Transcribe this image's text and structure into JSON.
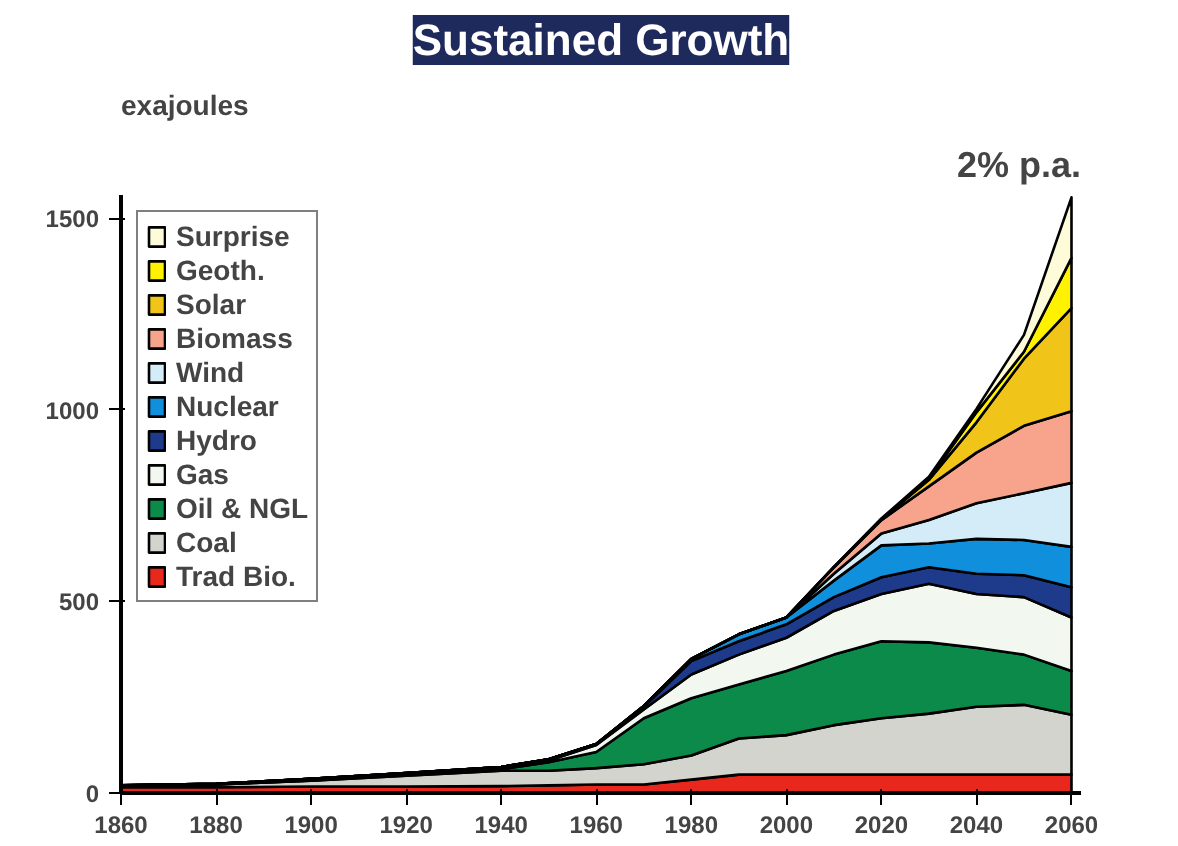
{
  "chart_data": {
    "type": "area",
    "stacked": true,
    "title": "Sustained Growth",
    "ylabel": "exajoules",
    "annotations": [
      "2% p.a."
    ],
    "x": [
      1860,
      1880,
      1900,
      1920,
      1940,
      1950,
      1960,
      1970,
      1980,
      1990,
      2000,
      2010,
      2020,
      2030,
      2040,
      2050,
      2060
    ],
    "xlim": [
      1860,
      2062
    ],
    "xticks": [
      1860,
      1880,
      1900,
      1920,
      1940,
      1960,
      1980,
      2000,
      2020,
      2040,
      2060
    ],
    "ylim": [
      0,
      1560
    ],
    "yticks": [
      0,
      500,
      1000,
      1500
    ],
    "grid": false,
    "legend": "top left",
    "series": [
      {
        "name": "Trad Bio.",
        "color": "#e8281c",
        "values": [
          15,
          15,
          17,
          17,
          18,
          20,
          22,
          22,
          35,
          48,
          48,
          48,
          48,
          48,
          48,
          48,
          48
        ]
      },
      {
        "name": "Coal",
        "color": "#d4d4cf",
        "values": [
          3,
          7,
          15,
          28,
          40,
          38,
          43,
          53,
          63,
          94,
          103,
          129,
          147,
          159,
          177,
          182,
          156
        ]
      },
      {
        "name": "Oil & NGL",
        "color": "#0b8a4a",
        "values": [
          0,
          0,
          1,
          3,
          4,
          22,
          42,
          120,
          149,
          141,
          167,
          184,
          201,
          186,
          154,
          131,
          114
        ]
      },
      {
        "name": "Gas",
        "color": "#f2f7ef",
        "values": [
          1,
          1,
          2,
          2,
          3,
          5,
          18,
          23,
          62,
          78,
          87,
          114,
          123,
          153,
          140,
          150,
          140
        ]
      },
      {
        "name": "Hydro",
        "color": "#1e3a8a",
        "values": [
          1,
          1,
          2,
          2,
          3,
          3,
          3,
          7,
          35,
          35,
          35,
          36,
          44,
          43,
          53,
          57,
          79
        ]
      },
      {
        "name": "Nuclear",
        "color": "#0f8fdc",
        "values": [
          0,
          0,
          0,
          0,
          0,
          0,
          0,
          2,
          6,
          18,
          18,
          43,
          83,
          62,
          91,
          92,
          105
        ]
      },
      {
        "name": "Wind",
        "color": "#d4ecf8",
        "values": [
          0,
          0,
          0,
          0,
          0,
          0,
          0,
          0,
          0,
          0,
          0,
          18,
          31,
          61,
          93,
          122,
          167
        ]
      },
      {
        "name": "Biomass",
        "color": "#f8a48c",
        "values": [
          0,
          0,
          0,
          0,
          0,
          0,
          0,
          0,
          0,
          0,
          0,
          17,
          35,
          88,
          132,
          176,
          187
        ]
      },
      {
        "name": "Solar",
        "color": "#f0c419",
        "values": [
          0,
          0,
          0,
          0,
          0,
          0,
          0,
          0,
          0,
          0,
          0,
          0,
          2,
          17,
          79,
          175,
          269
        ]
      },
      {
        "name": "Geoth.",
        "color": "#fff200",
        "values": [
          0,
          0,
          0,
          0,
          0,
          0,
          0,
          0,
          0,
          0,
          0,
          0,
          1,
          3,
          26,
          18,
          131
        ]
      },
      {
        "name": "Surprise",
        "color": "#fdfbd8",
        "values": [
          0,
          0,
          0,
          0,
          0,
          0,
          0,
          0,
          0,
          0,
          0,
          1,
          1,
          5,
          9,
          44,
          158
        ]
      }
    ]
  }
}
